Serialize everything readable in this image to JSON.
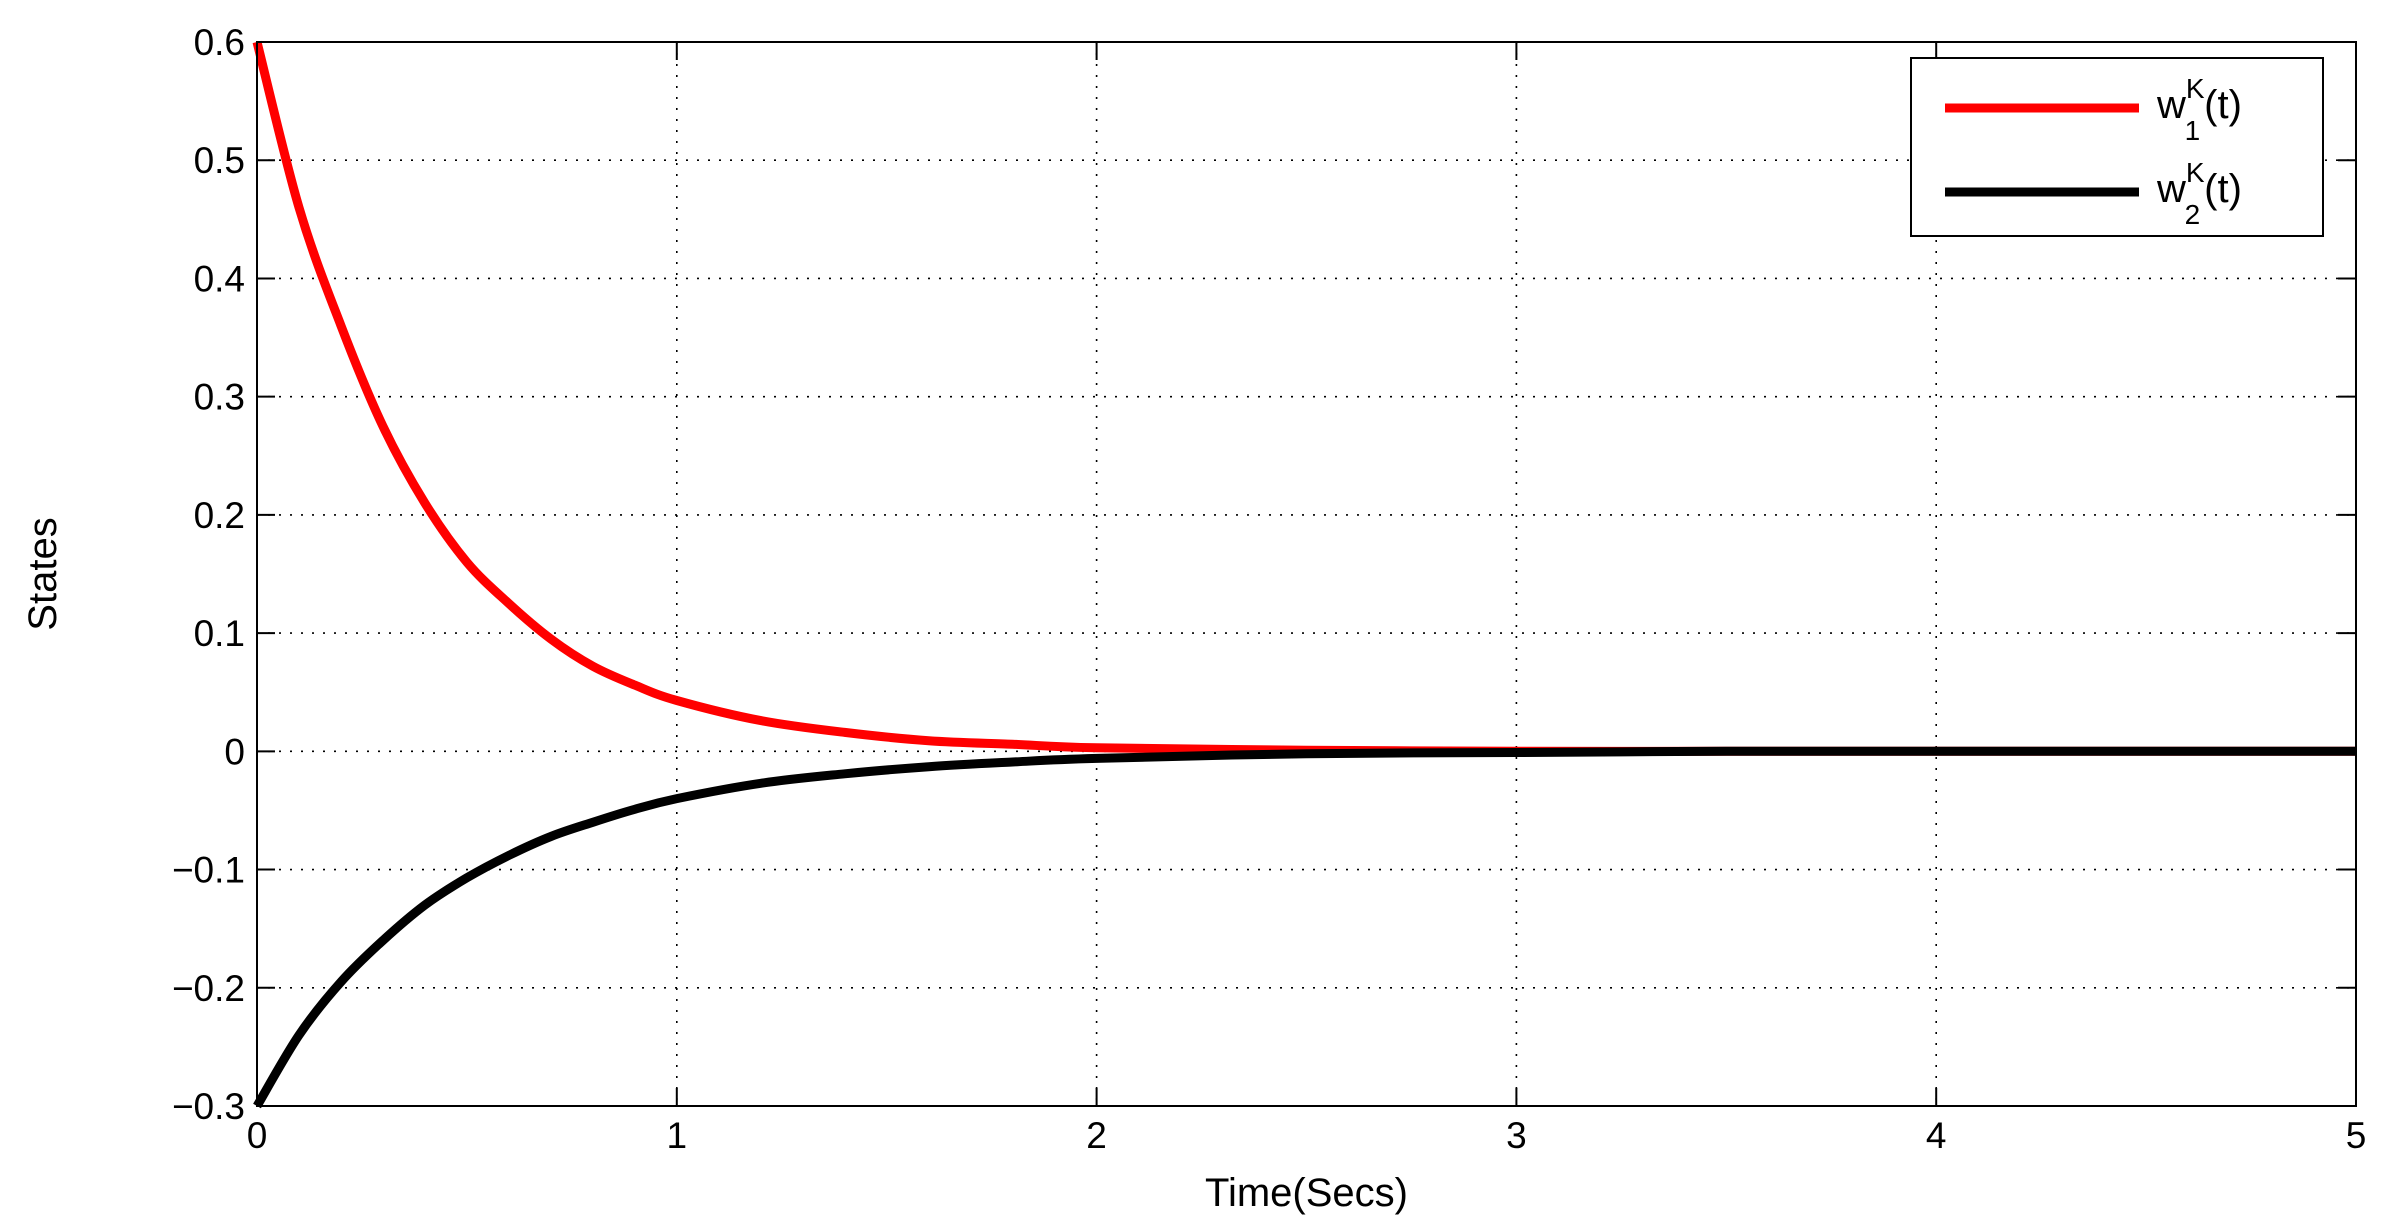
{
  "chart_data": {
    "type": "line",
    "title": "",
    "xlabel": "Time(Secs)",
    "ylabel": "States",
    "xlim": [
      0,
      5
    ],
    "ylim": [
      -0.3,
      0.6
    ],
    "grid": true,
    "legend_position": "top-right",
    "x_ticks": [
      0,
      1,
      2,
      3,
      4,
      5
    ],
    "x_tick_labels": [
      "0",
      "1",
      "2",
      "3",
      "4",
      "5"
    ],
    "y_ticks": [
      0.6,
      0.5,
      0.4,
      0.3,
      0.2,
      0.1,
      0,
      -0.1,
      -0.2,
      -0.3
    ],
    "y_tick_labels": [
      "0.6",
      "0.5",
      "0.4",
      "0.3",
      "0.2",
      "0.1",
      "0",
      "−0.1",
      "−0.2",
      "−0.3"
    ],
    "series": [
      {
        "name": "w",
        "name_sup": "K",
        "name_sub": "1",
        "name_suffix": "(t)",
        "color": "#ff0000",
        "x": [
          0,
          0.1,
          0.2,
          0.3,
          0.4,
          0.5,
          0.6,
          0.7,
          0.8,
          0.9,
          1.0,
          1.2,
          1.4,
          1.6,
          1.8,
          2.0,
          2.5,
          3.0,
          3.5,
          4.0,
          4.5,
          5.0
        ],
        "y": [
          0.6,
          0.46,
          0.36,
          0.275,
          0.21,
          0.16,
          0.125,
          0.095,
          0.072,
          0.056,
          0.043,
          0.026,
          0.016,
          0.009,
          0.006,
          0.003,
          0.001,
          0.0,
          0.0,
          0.0,
          0.0,
          0.0
        ]
      },
      {
        "name": "w",
        "name_sup": "K",
        "name_sub": "2",
        "name_suffix": "(t)",
        "color": "#000000",
        "x": [
          0,
          0.1,
          0.2,
          0.3,
          0.4,
          0.5,
          0.6,
          0.7,
          0.8,
          0.9,
          1.0,
          1.2,
          1.4,
          1.6,
          1.8,
          2.0,
          2.5,
          3.0,
          3.5,
          4.0,
          4.5,
          5.0
        ],
        "y": [
          -0.3,
          -0.24,
          -0.195,
          -0.16,
          -0.13,
          -0.107,
          -0.088,
          -0.072,
          -0.06,
          -0.049,
          -0.04,
          -0.027,
          -0.019,
          -0.013,
          -0.009,
          -0.006,
          -0.002,
          -0.001,
          0.0,
          0.0,
          0.0,
          0.0
        ]
      }
    ]
  }
}
